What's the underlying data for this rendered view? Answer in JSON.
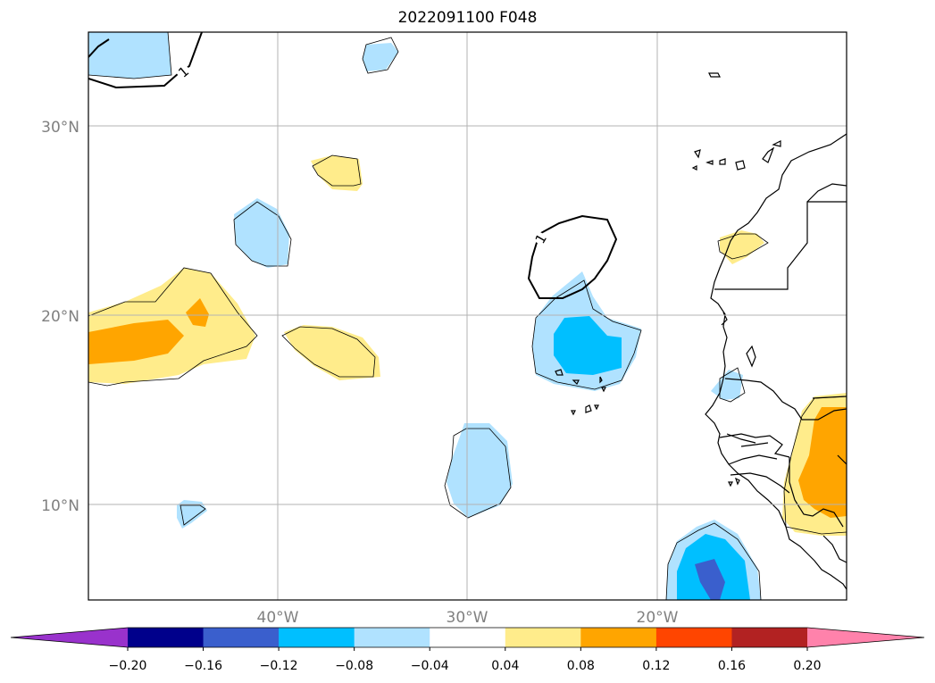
{
  "title": "2022091100 F048",
  "latitude_labels": [
    "30°N",
    "20°N",
    "10°N"
  ],
  "longitude_labels": [
    "40°W",
    "30°W",
    "20°W"
  ],
  "contour_labels": [
    "1",
    "1"
  ],
  "colorbar": {
    "ticks": [
      "−0.20",
      "−0.16",
      "−0.12",
      "−0.08",
      "−0.04",
      "0.04",
      "0.08",
      "0.12",
      "0.16",
      "0.20"
    ],
    "colors": [
      "#9932cc",
      "#00008b",
      "#3a5fcd",
      "#00bfff",
      "#b0e2ff",
      "#ffffff",
      "#ffec8b",
      "#ffa500",
      "#ff4500",
      "#b22222",
      "#ff82ab"
    ]
  },
  "map": {
    "lon_range": [
      -50,
      -10
    ],
    "lat_range": [
      5,
      35
    ],
    "gridlines": true,
    "features": [
      "coastlines",
      "borders",
      "filled anomaly contours",
      "black line contours"
    ]
  }
}
